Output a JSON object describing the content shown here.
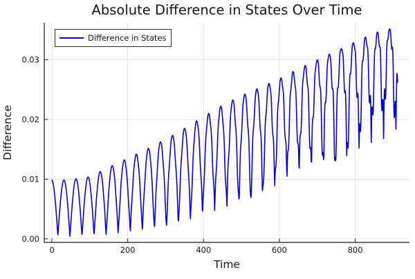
{
  "figure": {
    "background": "#ffffff",
    "text_color": "#151515",
    "axis_color": "#1c1c1c",
    "grid_color": "#e0e0e0"
  },
  "chart_data": {
    "type": "line",
    "title": "Absolute Difference in States Over Time",
    "xlabel": "Time",
    "ylabel": "Difference",
    "xlim": [
      -20,
      943
    ],
    "ylim": [
      -0.0006,
      0.0362
    ],
    "grid": true,
    "x_ticks": [
      {
        "value": 0,
        "label": "0"
      },
      {
        "value": 200,
        "label": "200"
      },
      {
        "value": 400,
        "label": "400"
      },
      {
        "value": 600,
        "label": "600"
      },
      {
        "value": 800,
        "label": "800"
      }
    ],
    "y_ticks": [
      {
        "value": 0.0,
        "label": "0.00"
      },
      {
        "value": 0.01,
        "label": "0.01"
      },
      {
        "value": 0.02,
        "label": "0.02"
      },
      {
        "value": 0.03,
        "label": "0.03"
      }
    ],
    "legend": {
      "position": "top-left",
      "border_color": "#2d2d2d",
      "background": "#ffffff"
    },
    "series": [
      {
        "name": "Difference in States",
        "color": "#0000ee",
        "line_width": 1.6,
        "t_start": 0,
        "t_end": 912,
        "t_step": 0.9,
        "arch_period": 31.8,
        "value_at_t0": 0.0098,
        "max_value": 0.0355,
        "jitter": {
          "amp": 0.0042,
          "power": 1.9,
          "period": 7.3,
          "phase": 0.9
        },
        "envelope": {
          "t": [
            0,
            50,
            100,
            150,
            200,
            250,
            300,
            350,
            400,
            450,
            500,
            550,
            600,
            650,
            700,
            750,
            800,
            850,
            912
          ],
          "upper": [
            0.0098,
            0.0099,
            0.0104,
            0.012,
            0.0135,
            0.015,
            0.0167,
            0.0185,
            0.0205,
            0.0224,
            0.024,
            0.0254,
            0.0268,
            0.0285,
            0.03,
            0.0315,
            0.033,
            0.0345,
            0.0355
          ],
          "lower": [
            0.0004,
            0.0004,
            0.0005,
            0.0006,
            0.0009,
            0.0014,
            0.002,
            0.0028,
            0.0038,
            0.0049,
            0.0061,
            0.0074,
            0.0088,
            0.0103,
            0.0118,
            0.0131,
            0.0145,
            0.016,
            0.018
          ]
        }
      }
    ]
  }
}
